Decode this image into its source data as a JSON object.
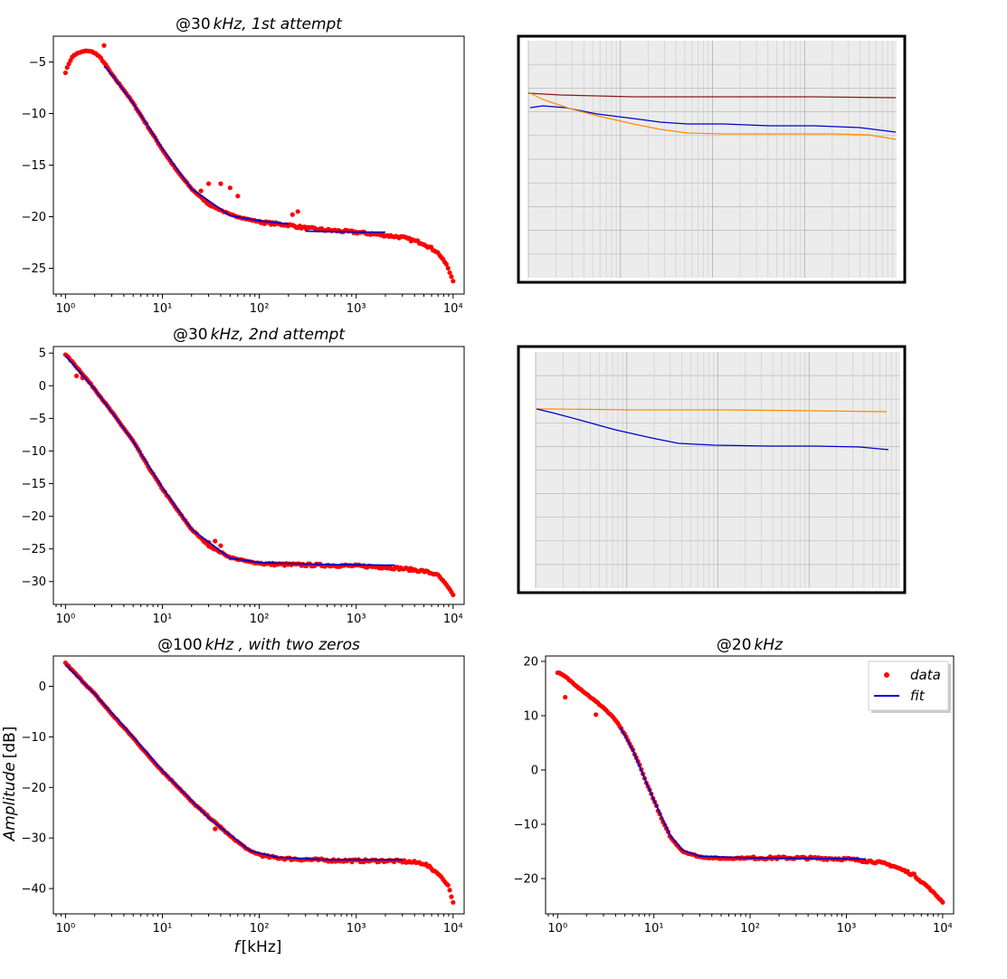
{
  "colors": {
    "data": "#ff0000",
    "fit": "#0000cc",
    "scope_maroon": "#8b1a1a",
    "scope_orange": "#ff8c00",
    "scope_blue": "#0000cc"
  },
  "figure": {
    "ylabel_italic": "Amplitude",
    "ylabel_unit": "[dB]",
    "xlabel_italic": "f",
    "xlabel_unit": "[kHz]"
  },
  "chart_data": [
    {
      "type": "scatter",
      "title_prefix": "@30",
      "title_mid": "kHz",
      "title_suffix": ", 1st attempt",
      "xscale": "log",
      "xlim": [
        0.75,
        13000
      ],
      "ylim": [
        -27.5,
        -2.5
      ],
      "yticks": [
        -25,
        -20,
        -15,
        -10,
        -5
      ],
      "ytick_labels": [
        "−25",
        "−20",
        "−15",
        "−10",
        "−5"
      ],
      "xticks": [
        1,
        10,
        100,
        1000,
        10000
      ],
      "xtick_labels": [
        "10⁰",
        "10¹",
        "10²",
        "10³",
        "10⁴"
      ],
      "series": [
        {
          "kind": "data",
          "curve": [
            [
              1.0,
              -6.0
            ],
            [
              1.1,
              -5.0
            ],
            [
              1.2,
              -4.4
            ],
            [
              1.3,
              -4.2
            ],
            [
              1.5,
              -4.0
            ],
            [
              1.7,
              -3.9
            ],
            [
              2.0,
              -4.1
            ],
            [
              2.3,
              -4.6
            ],
            [
              2.7,
              -5.5
            ],
            [
              3,
              -6.2
            ],
            [
              4,
              -7.7
            ],
            [
              5,
              -9.0
            ],
            [
              7,
              -11.2
            ],
            [
              10,
              -13.5
            ],
            [
              14,
              -15.5
            ],
            [
              20,
              -17.3
            ],
            [
              30,
              -18.8
            ],
            [
              50,
              -19.8
            ],
            [
              80,
              -20.3
            ],
            [
              120,
              -20.6
            ],
            [
              200,
              -20.8
            ],
            [
              300,
              -21.1
            ],
            [
              500,
              -21.3
            ],
            [
              1000,
              -21.5
            ],
            [
              2000,
              -21.8
            ],
            [
              3000,
              -22.0
            ],
            [
              5000,
              -22.6
            ],
            [
              7000,
              -23.5
            ],
            [
              8500,
              -24.6
            ],
            [
              10000,
              -26.2
            ]
          ],
          "extra": [
            [
              2.5,
              -3.4
            ],
            [
              25,
              -17.5
            ],
            [
              30,
              -16.8
            ],
            [
              40,
              -16.8
            ],
            [
              50,
              -17.2
            ],
            [
              60,
              -18.0
            ],
            [
              220,
              -19.8
            ],
            [
              250,
              -19.5
            ]
          ]
        },
        {
          "kind": "fit",
          "segments": [
            [
              [
                2.5,
                -5.4
              ],
              [
                3,
                -6.2
              ],
              [
                5,
                -9.0
              ],
              [
                10,
                -13.4
              ],
              [
                20,
                -17.3
              ],
              [
                50,
                -19.9
              ],
              [
                100,
                -20.4
              ],
              [
                200,
                -20.7
              ]
            ],
            [
              [
                300,
                -21.4
              ],
              [
                1000,
                -21.5
              ],
              [
                2000,
                -21.5
              ]
            ]
          ]
        }
      ]
    },
    {
      "type": "scatter",
      "title_prefix": "@30",
      "title_mid": "kHz",
      "title_suffix": ", 2nd attempt",
      "xscale": "log",
      "xlim": [
        0.75,
        13000
      ],
      "ylim": [
        -33.5,
        6
      ],
      "yticks": [
        -30,
        -25,
        -20,
        -15,
        -10,
        -5,
        0,
        5
      ],
      "ytick_labels": [
        "−30",
        "−25",
        "−20",
        "−15",
        "−10",
        "−5",
        "0",
        "5"
      ],
      "xticks": [
        1,
        10,
        100,
        1000,
        10000
      ],
      "xtick_labels": [
        "10⁰",
        "10¹",
        "10²",
        "10³",
        "10⁴"
      ],
      "series": [
        {
          "kind": "data",
          "curve": [
            [
              1.0,
              4.8
            ],
            [
              1.2,
              3.5
            ],
            [
              1.5,
              1.8
            ],
            [
              2,
              -0.5
            ],
            [
              3,
              -4.0
            ],
            [
              5,
              -8.5
            ],
            [
              7,
              -12.2
            ],
            [
              10,
              -15.8
            ],
            [
              15,
              -19.5
            ],
            [
              20,
              -22.0
            ],
            [
              30,
              -24.5
            ],
            [
              50,
              -26.3
            ],
            [
              80,
              -27.0
            ],
            [
              120,
              -27.3
            ],
            [
              200,
              -27.4
            ],
            [
              500,
              -27.5
            ],
            [
              1000,
              -27.6
            ],
            [
              2000,
              -27.8
            ],
            [
              3000,
              -28.0
            ],
            [
              5000,
              -28.4
            ],
            [
              7000,
              -29.0
            ],
            [
              8500,
              -30.5
            ],
            [
              10000,
              -32.0
            ]
          ],
          "extra": [
            [
              1.3,
              1.5
            ],
            [
              1.5,
              1.2
            ],
            [
              30,
              -24.0
            ],
            [
              35,
              -23.8
            ],
            [
              40,
              -24.5
            ]
          ]
        },
        {
          "kind": "fit",
          "segments": [
            [
              [
                1.0,
                4.6
              ],
              [
                2,
                -0.5
              ],
              [
                5,
                -8.5
              ],
              [
                10,
                -15.6
              ],
              [
                20,
                -22.0
              ],
              [
                50,
                -26.4
              ],
              [
                100,
                -27.1
              ],
              [
                500,
                -27.4
              ],
              [
                2500,
                -27.5
              ]
            ]
          ]
        }
      ]
    },
    {
      "type": "scatter",
      "title_prefix": "@100",
      "title_mid": "kHz",
      "title_suffix": " , with two zeros",
      "xscale": "log",
      "xlim": [
        0.75,
        13000
      ],
      "ylim": [
        -45,
        6
      ],
      "yticks": [
        -40,
        -30,
        -20,
        -10,
        0
      ],
      "ytick_labels": [
        "−40",
        "−30",
        "−20",
        "−10",
        "0"
      ],
      "xticks": [
        1,
        10,
        100,
        1000,
        10000
      ],
      "xtick_labels": [
        "10⁰",
        "10¹",
        "10²",
        "10³",
        "10⁴"
      ],
      "series": [
        {
          "kind": "data",
          "curve": [
            [
              1.0,
              4.6
            ],
            [
              1.5,
              1.0
            ],
            [
              2,
              -1.5
            ],
            [
              3,
              -5.5
            ],
            [
              5,
              -10.2
            ],
            [
              7,
              -13.5
            ],
            [
              10,
              -16.8
            ],
            [
              15,
              -20.2
            ],
            [
              20,
              -22.8
            ],
            [
              30,
              -25.8
            ],
            [
              50,
              -29.6
            ],
            [
              80,
              -32.6
            ],
            [
              120,
              -33.7
            ],
            [
              200,
              -34.1
            ],
            [
              500,
              -34.4
            ],
            [
              1000,
              -34.5
            ],
            [
              2000,
              -34.5
            ],
            [
              3000,
              -34.6
            ],
            [
              5000,
              -35.0
            ],
            [
              7000,
              -37.0
            ],
            [
              9000,
              -39.5
            ],
            [
              10000,
              -42.8
            ]
          ],
          "extra": [
            [
              35,
              -28.2
            ],
            [
              40,
              -27.8
            ]
          ]
        },
        {
          "kind": "fit",
          "segments": [
            [
              [
                1.0,
                4.3
              ],
              [
                2,
                -1.5
              ],
              [
                5,
                -10.0
              ],
              [
                10,
                -16.7
              ],
              [
                30,
                -26.0
              ],
              [
                80,
                -32.5
              ],
              [
                150,
                -33.8
              ],
              [
                500,
                -34.3
              ],
              [
                3000,
                -34.3
              ]
            ]
          ]
        }
      ]
    },
    {
      "type": "scatter",
      "title_prefix": "@20",
      "title_mid": "kHz",
      "title_suffix": "",
      "xscale": "log",
      "xlim": [
        0.75,
        13000
      ],
      "ylim": [
        -26.5,
        21
      ],
      "yticks": [
        -20,
        -10,
        0,
        10,
        20
      ],
      "ytick_labels": [
        "−20",
        "−10",
        "0",
        "10",
        "20"
      ],
      "xticks": [
        1,
        10,
        100,
        1000,
        10000
      ],
      "xtick_labels": [
        "10⁰",
        "10¹",
        "10²",
        "10³",
        "10⁴"
      ],
      "legend": {
        "placement": "top-right",
        "entries": [
          "data",
          "fit"
        ]
      },
      "series": [
        {
          "kind": "data",
          "name": "data",
          "curve": [
            [
              1.0,
              18.0
            ],
            [
              1.2,
              17.2
            ],
            [
              1.5,
              15.8
            ],
            [
              2,
              14.0
            ],
            [
              2.5,
              12.6
            ],
            [
              3,
              11.5
            ],
            [
              4,
              9.2
            ],
            [
              5,
              6.5
            ],
            [
              6,
              3.8
            ],
            [
              7,
              1.2
            ],
            [
              8,
              -1.5
            ],
            [
              10,
              -5.5
            ],
            [
              12,
              -9.0
            ],
            [
              15,
              -12.5
            ],
            [
              20,
              -15.0
            ],
            [
              30,
              -16.0
            ],
            [
              50,
              -16.3
            ],
            [
              100,
              -16.2
            ],
            [
              300,
              -16.2
            ],
            [
              700,
              -16.3
            ],
            [
              1000,
              -16.4
            ],
            [
              2000,
              -16.9
            ],
            [
              3000,
              -17.6
            ],
            [
              5000,
              -19.3
            ],
            [
              7000,
              -21.5
            ],
            [
              10000,
              -24.3
            ]
          ],
          "extra": [
            [
              1.2,
              13.4
            ],
            [
              2.5,
              10.2
            ]
          ]
        },
        {
          "kind": "fit",
          "name": "fit",
          "segments": [
            [
              [
                4.5,
                7.8
              ],
              [
                6,
                3.8
              ],
              [
                8,
                -1.5
              ],
              [
                10,
                -5.5
              ],
              [
                15,
                -12.3
              ],
              [
                20,
                -14.8
              ],
              [
                30,
                -15.9
              ],
              [
                100,
                -16.2
              ],
              [
                500,
                -16.3
              ],
              [
                1600,
                -16.4
              ]
            ]
          ]
        }
      ]
    }
  ]
}
